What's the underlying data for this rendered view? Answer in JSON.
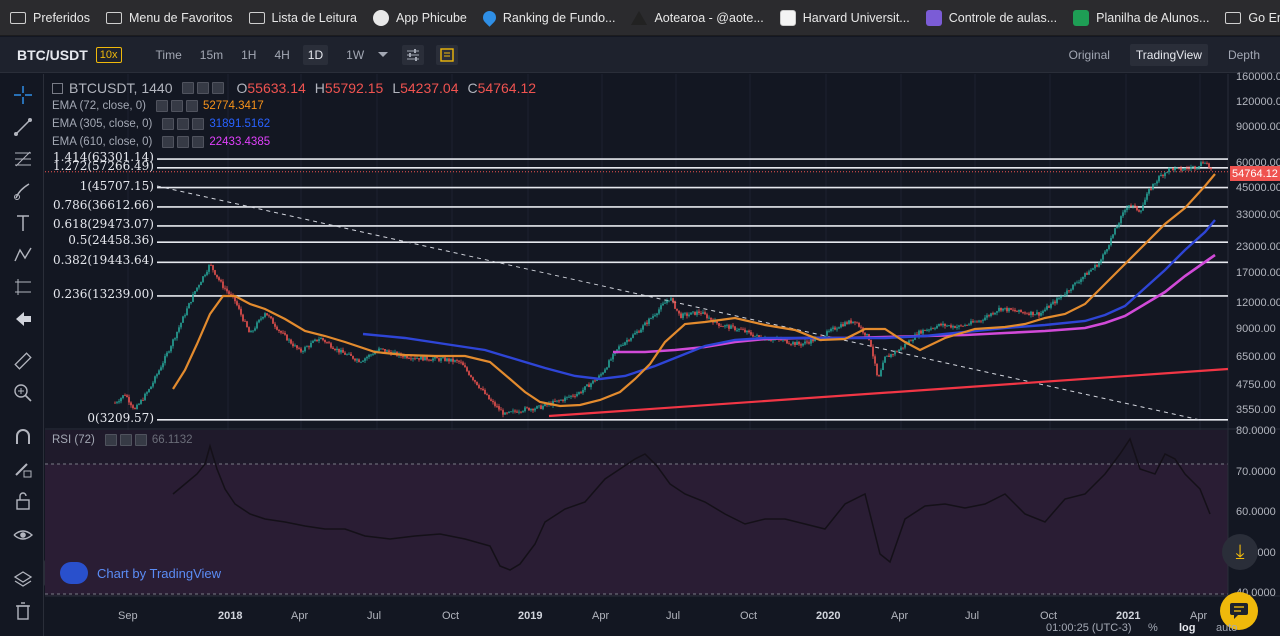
{
  "bookmarks": [
    {
      "label": "Preferidos",
      "icon": "folder"
    },
    {
      "label": "Menu de Favoritos",
      "icon": "folder"
    },
    {
      "label": "Lista de Leitura",
      "icon": "folder"
    },
    {
      "label": "App Phicube",
      "icon": "globe"
    },
    {
      "label": "Ranking de Fundo...",
      "icon": "drop"
    },
    {
      "label": "Aotearoa - @aote...",
      "icon": "tri"
    },
    {
      "label": "Harvard Universit...",
      "icon": "harvard"
    },
    {
      "label": "Controle de aulas...",
      "icon": "classes"
    },
    {
      "label": "Planilha de Alunos...",
      "icon": "sheet"
    },
    {
      "label": "Go English",
      "icon": "folder"
    }
  ],
  "toolbar": {
    "symbol": "BTC/USDT",
    "leverage": "10x",
    "timeframes": [
      "Time",
      "15m",
      "1H",
      "4H",
      "1D",
      "1W"
    ],
    "active_timeframe": "1D",
    "views": [
      "Original",
      "TradingView",
      "Depth"
    ],
    "active_view": "TradingView"
  },
  "legend": {
    "title": "BTCUSDT, 1440",
    "o_label": "O",
    "o": "55633.14",
    "h_label": "H",
    "h": "55792.15",
    "l_label": "L",
    "l": "54237.04",
    "c_label": "C",
    "c": "54764.12",
    "ema": [
      {
        "label": "EMA (72, close, 0)",
        "value": "52774.3417",
        "color": "#f7931a"
      },
      {
        "label": "EMA (305, close, 0)",
        "value": "31891.5162",
        "color": "#2962ff"
      },
      {
        "label": "EMA (610, close, 0)",
        "value": "22433.4385",
        "color": "#e040fb"
      }
    ],
    "rsi": {
      "label": "RSI (72)",
      "value": "66.1132"
    }
  },
  "fib_levels": [
    {
      "label": "1.414(63301.14)",
      "price": 63301.14
    },
    {
      "label": "1.272(57266.49)",
      "price": 57266.49
    },
    {
      "label": "1(45707.15)",
      "price": 45707.15
    },
    {
      "label": "0.786(36612.66)",
      "price": 36612.66
    },
    {
      "label": "0.618(29473.07)",
      "price": 29473.07
    },
    {
      "label": "0.5(24458.36)",
      "price": 24458.36
    },
    {
      "label": "0.382(19443.64)",
      "price": 19443.64
    },
    {
      "label": "0.236(13239.00)",
      "price": 13239.0
    },
    {
      "label": "0(3209.57)",
      "price": 3209.57
    }
  ],
  "price_axis": [
    "160000.00",
    "120000.00",
    "90000.00",
    "60000.00",
    "45000.00",
    "33000.00",
    "23000.00",
    "17000.00",
    "12000.00",
    "9000.00",
    "6500.00",
    "4750.00",
    "3550.00"
  ],
  "current_price": "54764.12",
  "rsi_axis": [
    "80.0000",
    "70.0000",
    "60.0000",
    "50.0000",
    "40.0000"
  ],
  "time_axis": [
    {
      "label": "Sep",
      "bold": false
    },
    {
      "label": "2018",
      "bold": true
    },
    {
      "label": "Apr",
      "bold": false
    },
    {
      "label": "Jul",
      "bold": false
    },
    {
      "label": "Oct",
      "bold": false
    },
    {
      "label": "2019",
      "bold": true
    },
    {
      "label": "Apr",
      "bold": false
    },
    {
      "label": "Jul",
      "bold": false
    },
    {
      "label": "Oct",
      "bold": false
    },
    {
      "label": "2020",
      "bold": true
    },
    {
      "label": "Apr",
      "bold": false
    },
    {
      "label": "Jul",
      "bold": false
    },
    {
      "label": "Oct",
      "bold": false
    },
    {
      "label": "2021",
      "bold": true
    },
    {
      "label": "Apr",
      "bold": false
    }
  ],
  "credit": "Chart by TradingView",
  "status": {
    "time": "01:00:25 (UTC-3)",
    "percent": "%",
    "log": "log",
    "auto": "auto"
  },
  "colors": {
    "up": "#26a69a",
    "down": "#ef5350",
    "accent": "#f0b90b"
  }
}
